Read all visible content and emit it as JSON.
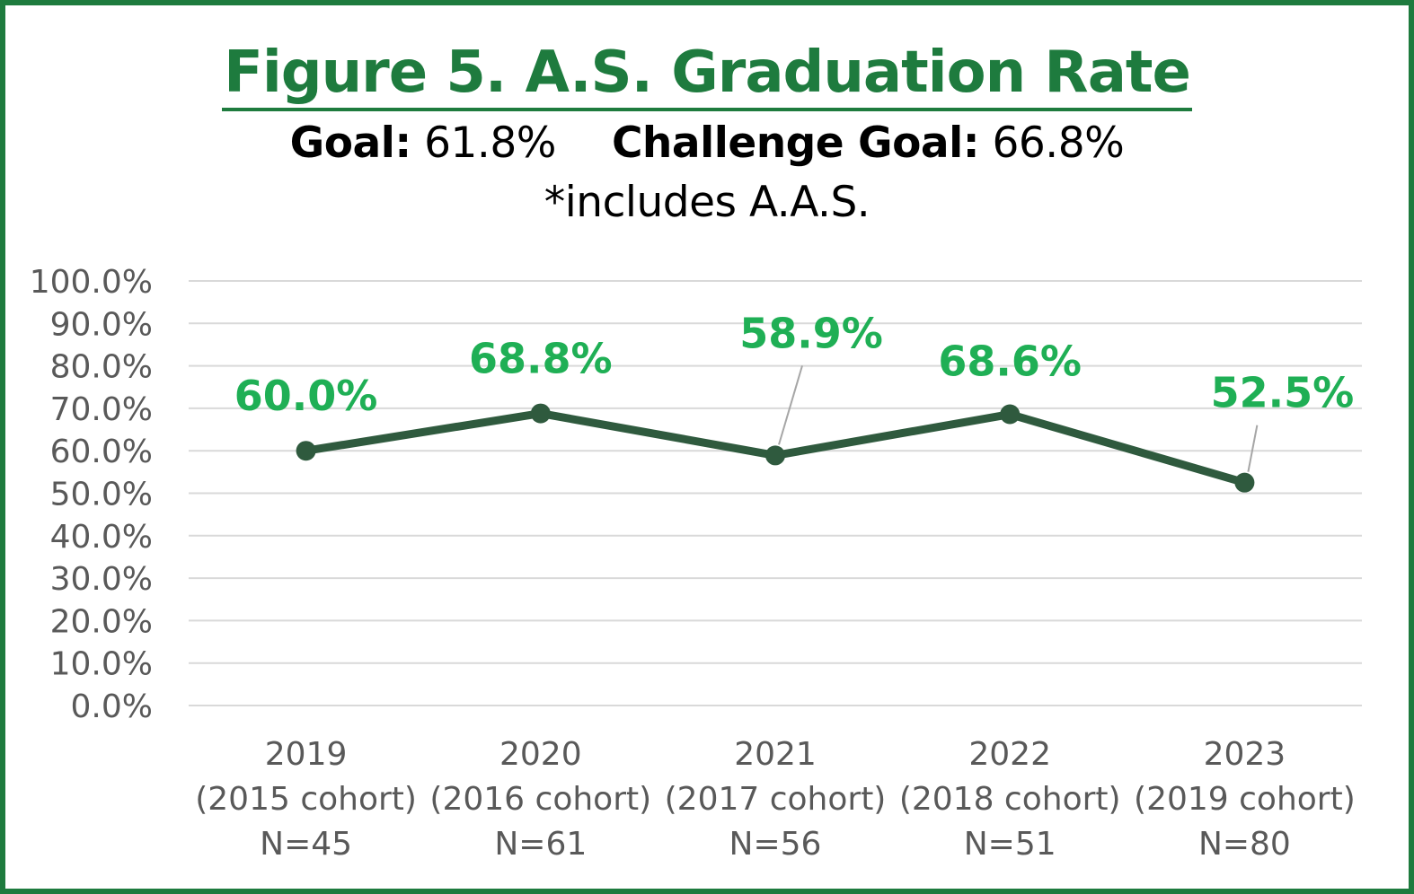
{
  "title": "Figure 5. A.S. Graduation Rate",
  "goal_label": "Goal:",
  "goal_value": "61.8%",
  "challenge_label": "Challenge Goal:",
  "challenge_value": "66.8%",
  "note": "*includes A.A.S.",
  "colors": {
    "frame": "#1e7b3e",
    "title": "#1e7b3e",
    "line": "#2f5a3e",
    "data_label": "#1faf55",
    "grid": "#d9d9d9",
    "axis_text": "#595959"
  },
  "chart_data": {
    "type": "line",
    "categories": [
      [
        "2019",
        "(2015 cohort)",
        "N=45"
      ],
      [
        "2020",
        "(2016 cohort)",
        "N=61"
      ],
      [
        "2021",
        "(2017 cohort)",
        "N=56"
      ],
      [
        "2022",
        "(2018 cohort)",
        "N=51"
      ],
      [
        "2023",
        "(2019 cohort)",
        "N=80"
      ]
    ],
    "series": [
      {
        "values": [
          60.0,
          68.8,
          58.9,
          68.6,
          52.5
        ],
        "labels": [
          "60.0%",
          "68.8%",
          "58.9%",
          "68.6%",
          "52.5%"
        ]
      }
    ],
    "y_ticks": [
      "0.0%",
      "10.0%",
      "20.0%",
      "30.0%",
      "40.0%",
      "50.0%",
      "60.0%",
      "70.0%",
      "80.0%",
      "90.0%",
      "100.0%"
    ],
    "ylim": [
      0,
      100
    ],
    "grid": true,
    "legend": "none"
  }
}
